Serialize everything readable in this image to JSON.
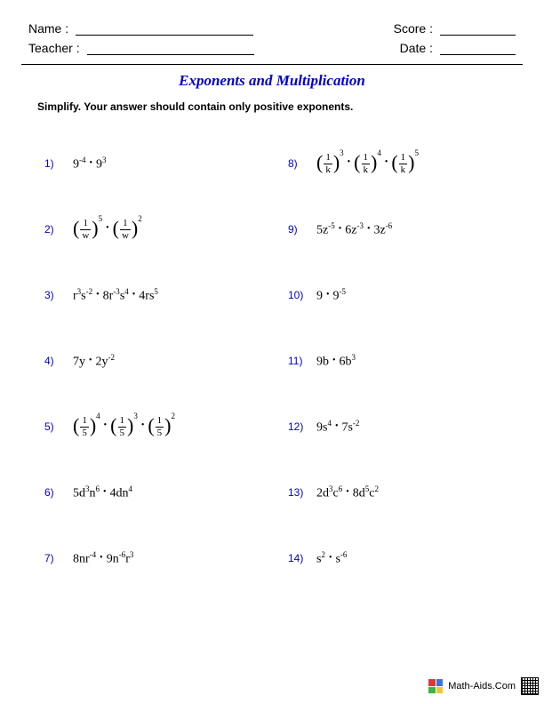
{
  "header": {
    "name_label": "Name :",
    "teacher_label": "Teacher :",
    "score_label": "Score :",
    "date_label": "Date :"
  },
  "title": "Exponents and Multiplication",
  "instructions": "Simplify.  Your answer should contain only positive exponents.",
  "problems_left": [
    {
      "n": "1)",
      "html": "9<sup>-4</sup><span class='dot'>•</span>9<sup>3</sup>"
    },
    {
      "n": "2)",
      "html": "<span class='paren'>(</span><span class='frac'><span class='num'>1</span><span class='den'>w</span></span><span class='paren'>)</span><span class='psup'>5</span><span class='dot'>•</span><span class='paren'>(</span><span class='frac'><span class='num'>1</span><span class='den'>w</span></span><span class='paren'>)</span><span class='psup'>2</span>"
    },
    {
      "n": "3)",
      "html": "r<sup>3</sup>s<sup>-2</sup><span class='dot'>•</span>8r<sup>-3</sup>s<sup>4</sup><span class='dot'>•</span>4rs<sup>5</sup>"
    },
    {
      "n": "4)",
      "html": "7y<span class='dot'>•</span>2y<sup>-2</sup>"
    },
    {
      "n": "5)",
      "html": "<span class='paren'>(</span><span class='frac'><span class='num'>1</span><span class='den'>5</span></span><span class='paren'>)</span><span class='psup'>4</span><span class='dot'>•</span><span class='paren'>(</span><span class='frac'><span class='num'>1</span><span class='den'>5</span></span><span class='paren'>)</span><span class='psup'>3</span><span class='dot'>•</span><span class='paren'>(</span><span class='frac'><span class='num'>1</span><span class='den'>5</span></span><span class='paren'>)</span><span class='psup'>2</span>"
    },
    {
      "n": "6)",
      "html": "5d<sup>3</sup>n<sup>6</sup><span class='dot'>•</span>4dn<sup>4</sup>"
    },
    {
      "n": "7)",
      "html": "8nr<sup>-4</sup><span class='dot'>•</span>9n<sup>-6</sup>r<sup>3</sup>"
    }
  ],
  "problems_right": [
    {
      "n": "8)",
      "html": "<span class='paren'>(</span><span class='frac'><span class='num'>1</span><span class='den'>k</span></span><span class='paren'>)</span><span class='psup'>3</span><span class='dot'>•</span><span class='paren'>(</span><span class='frac'><span class='num'>1</span><span class='den'>k</span></span><span class='paren'>)</span><span class='psup'>4</span><span class='dot'>•</span><span class='paren'>(</span><span class='frac'><span class='num'>1</span><span class='den'>k</span></span><span class='paren'>)</span><span class='psup'>5</span>"
    },
    {
      "n": "9)",
      "html": "5z<sup>-5</sup><span class='dot'>•</span>6z<sup>-3</sup><span class='dot'>•</span>3z<sup>-6</sup>"
    },
    {
      "n": "10)",
      "html": "9<span class='dot'>•</span>9<sup>-5</sup>"
    },
    {
      "n": "11)",
      "html": "9b<span class='dot'>•</span>6b<sup>3</sup>"
    },
    {
      "n": "12)",
      "html": "9s<sup>4</sup><span class='dot'>•</span>7s<sup>-2</sup>"
    },
    {
      "n": "13)",
      "html": "2d<sup>3</sup>c<sup>6</sup><span class='dot'>•</span>8d<sup>5</sup>c<sup>2</sup>"
    },
    {
      "n": "14)",
      "html": "s<sup>2</sup><span class='dot'>•</span>s<sup>-6</sup>"
    }
  ],
  "footer": {
    "text": "Math-Aids.Com",
    "icon_colors": [
      "#d43b3b",
      "#3b74d4",
      "#3bb44a",
      "#f2c730"
    ]
  }
}
